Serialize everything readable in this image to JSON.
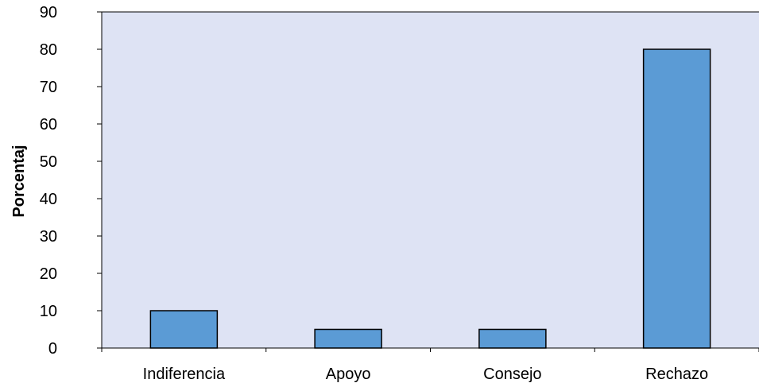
{
  "colors": {
    "plot_background": "#dee3f4",
    "bar_fill": "#5b9bd5",
    "bar_stroke": "#000000",
    "axis": "#000000"
  },
  "chart_data": {
    "type": "bar",
    "categories": [
      "Indiferencia",
      "Apoyo",
      "Consejo",
      "Rechazo"
    ],
    "values": [
      10,
      5,
      5,
      80
    ],
    "title": "",
    "xlabel": "",
    "ylabel": "Porcentaj",
    "ylim": [
      0,
      90
    ],
    "yticks": [
      "0",
      "10",
      "20",
      "30",
      "40",
      "50",
      "60",
      "70",
      "80",
      "90"
    ],
    "grid": false,
    "legend": "none"
  }
}
